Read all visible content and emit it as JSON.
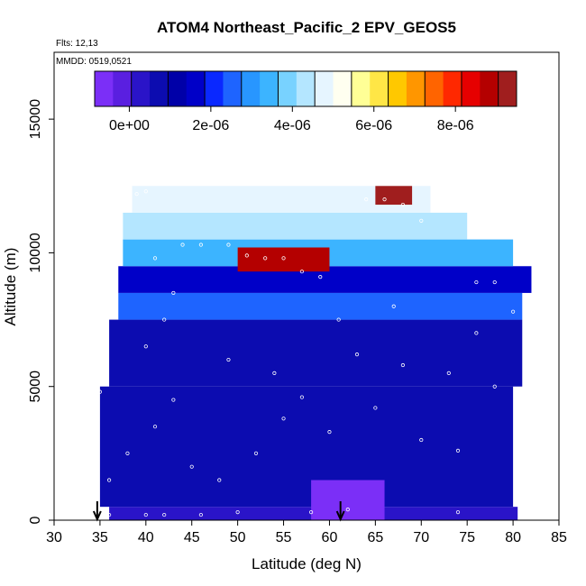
{
  "header": {
    "title": "ATOM4 Northeast_Pacific_2 EPV_GEOS5",
    "flights": "Flts: 12,13",
    "mmdd": "MMDD: 0519,0521"
  },
  "chart_data": {
    "type": "heatmap",
    "title": "ATOM4 Northeast_Pacific_2 EPV_GEOS5",
    "xlabel": "Latitude (deg N)",
    "ylabel": "Altitude (m)",
    "xlim": [
      30,
      85
    ],
    "ylim": [
      0,
      17500
    ],
    "x_ticks": [
      "30",
      "35",
      "40",
      "45",
      "50",
      "55",
      "60",
      "65",
      "70",
      "75",
      "80",
      "85"
    ],
    "y_ticks": [
      "0",
      "5000",
      "10000",
      "15000"
    ],
    "colorbar": {
      "range": [
        -8.5e-07,
        9.5e-06
      ],
      "ticks": [
        "0e+00",
        "2e-06",
        "4e-06",
        "6e-06",
        "8e-06"
      ],
      "tick_values": [
        0,
        2e-06,
        4e-06,
        6e-06,
        8e-06
      ],
      "colors": [
        "#7b2ff7",
        "#5a1fe0",
        "#2a14c8",
        "#0c0cb0",
        "#0000a8",
        "#0000c8",
        "#0a28ff",
        "#1e64ff",
        "#2896ff",
        "#3cb4ff",
        "#78d2ff",
        "#b4e6ff",
        "#e6f5ff",
        "#fffff0",
        "#ffff96",
        "#ffe646",
        "#ffc800",
        "#ff9600",
        "#ff6400",
        "#ff2800",
        "#e60000",
        "#b40000",
        "#a01e1e"
      ]
    },
    "arrows_at_lat": [
      34.7,
      61.2
    ],
    "grid": false,
    "field": {
      "bands": [
        {
          "alt": [
            0,
            500
          ],
          "lat": [
            36,
            80.5
          ],
          "value": 2e-07
        },
        {
          "alt": [
            500,
            5000
          ],
          "lat": [
            35,
            80
          ],
          "value": 8e-07
        },
        {
          "alt": [
            5000,
            7500
          ],
          "lat": [
            36,
            81
          ],
          "value": 9e-07
        },
        {
          "alt": [
            7500,
            8500
          ],
          "lat": [
            37,
            81
          ],
          "value": 2.4e-06
        },
        {
          "alt": [
            8500,
            9500
          ],
          "lat": [
            37,
            82
          ],
          "value": 1.4e-06
        },
        {
          "alt": [
            9500,
            10500
          ],
          "lat": [
            37.5,
            80
          ],
          "value": 3.2e-06
        },
        {
          "alt": [
            10500,
            11500
          ],
          "lat": [
            37.5,
            75
          ],
          "value": 4.4e-06
        },
        {
          "alt": [
            11500,
            12500
          ],
          "lat": [
            38.5,
            71
          ],
          "value": 4.8e-06
        }
      ],
      "features": [
        {
          "alt": [
            9300,
            10200
          ],
          "lat": [
            50,
            60
          ],
          "value": 8.8e-06
        },
        {
          "alt": [
            11800,
            12500
          ],
          "lat": [
            65,
            69
          ],
          "value": 9.3e-06
        },
        {
          "alt": [
            0,
            1500
          ],
          "lat": [
            58,
            66
          ],
          "value": -5e-07
        }
      ]
    },
    "samples": [
      {
        "lat": 36,
        "alt": 200
      },
      {
        "lat": 40,
        "alt": 200
      },
      {
        "lat": 42,
        "alt": 200
      },
      {
        "lat": 46,
        "alt": 200
      },
      {
        "lat": 50,
        "alt": 300
      },
      {
        "lat": 58,
        "alt": 300
      },
      {
        "lat": 62,
        "alt": 400
      },
      {
        "lat": 74,
        "alt": 300
      },
      {
        "lat": 36,
        "alt": 1500
      },
      {
        "lat": 38,
        "alt": 2500
      },
      {
        "lat": 41,
        "alt": 3500
      },
      {
        "lat": 43,
        "alt": 4500
      },
      {
        "lat": 35,
        "alt": 4800
      },
      {
        "lat": 45,
        "alt": 2000
      },
      {
        "lat": 48,
        "alt": 1500
      },
      {
        "lat": 52,
        "alt": 2500
      },
      {
        "lat": 55,
        "alt": 3800
      },
      {
        "lat": 60,
        "alt": 3300
      },
      {
        "lat": 65,
        "alt": 4200
      },
      {
        "lat": 70,
        "alt": 3000
      },
      {
        "lat": 73,
        "alt": 5500
      },
      {
        "lat": 74,
        "alt": 2600
      },
      {
        "lat": 78,
        "alt": 5000
      },
      {
        "lat": 40,
        "alt": 6500
      },
      {
        "lat": 42,
        "alt": 7500
      },
      {
        "lat": 49,
        "alt": 6000
      },
      {
        "lat": 54,
        "alt": 5500
      },
      {
        "lat": 57,
        "alt": 4600
      },
      {
        "lat": 63,
        "alt": 6200
      },
      {
        "lat": 68,
        "alt": 5800
      },
      {
        "lat": 76,
        "alt": 7000
      },
      {
        "lat": 80,
        "alt": 7800
      },
      {
        "lat": 44,
        "alt": 10300
      },
      {
        "lat": 46,
        "alt": 10300
      },
      {
        "lat": 49,
        "alt": 10300
      },
      {
        "lat": 51,
        "alt": 9900
      },
      {
        "lat": 53,
        "alt": 9800
      },
      {
        "lat": 55,
        "alt": 9800
      },
      {
        "lat": 57,
        "alt": 9300
      },
      {
        "lat": 59,
        "alt": 9100
      },
      {
        "lat": 39,
        "alt": 12200
      },
      {
        "lat": 40,
        "alt": 12300
      },
      {
        "lat": 64,
        "alt": 12000
      },
      {
        "lat": 66,
        "alt": 12000
      },
      {
        "lat": 68,
        "alt": 11800
      },
      {
        "lat": 70,
        "alt": 11200
      },
      {
        "lat": 76,
        "alt": 8900
      },
      {
        "lat": 78,
        "alt": 8900
      },
      {
        "lat": 41,
        "alt": 9800
      },
      {
        "lat": 43,
        "alt": 8500
      },
      {
        "lat": 61,
        "alt": 7500
      },
      {
        "lat": 67,
        "alt": 8000
      }
    ]
  }
}
